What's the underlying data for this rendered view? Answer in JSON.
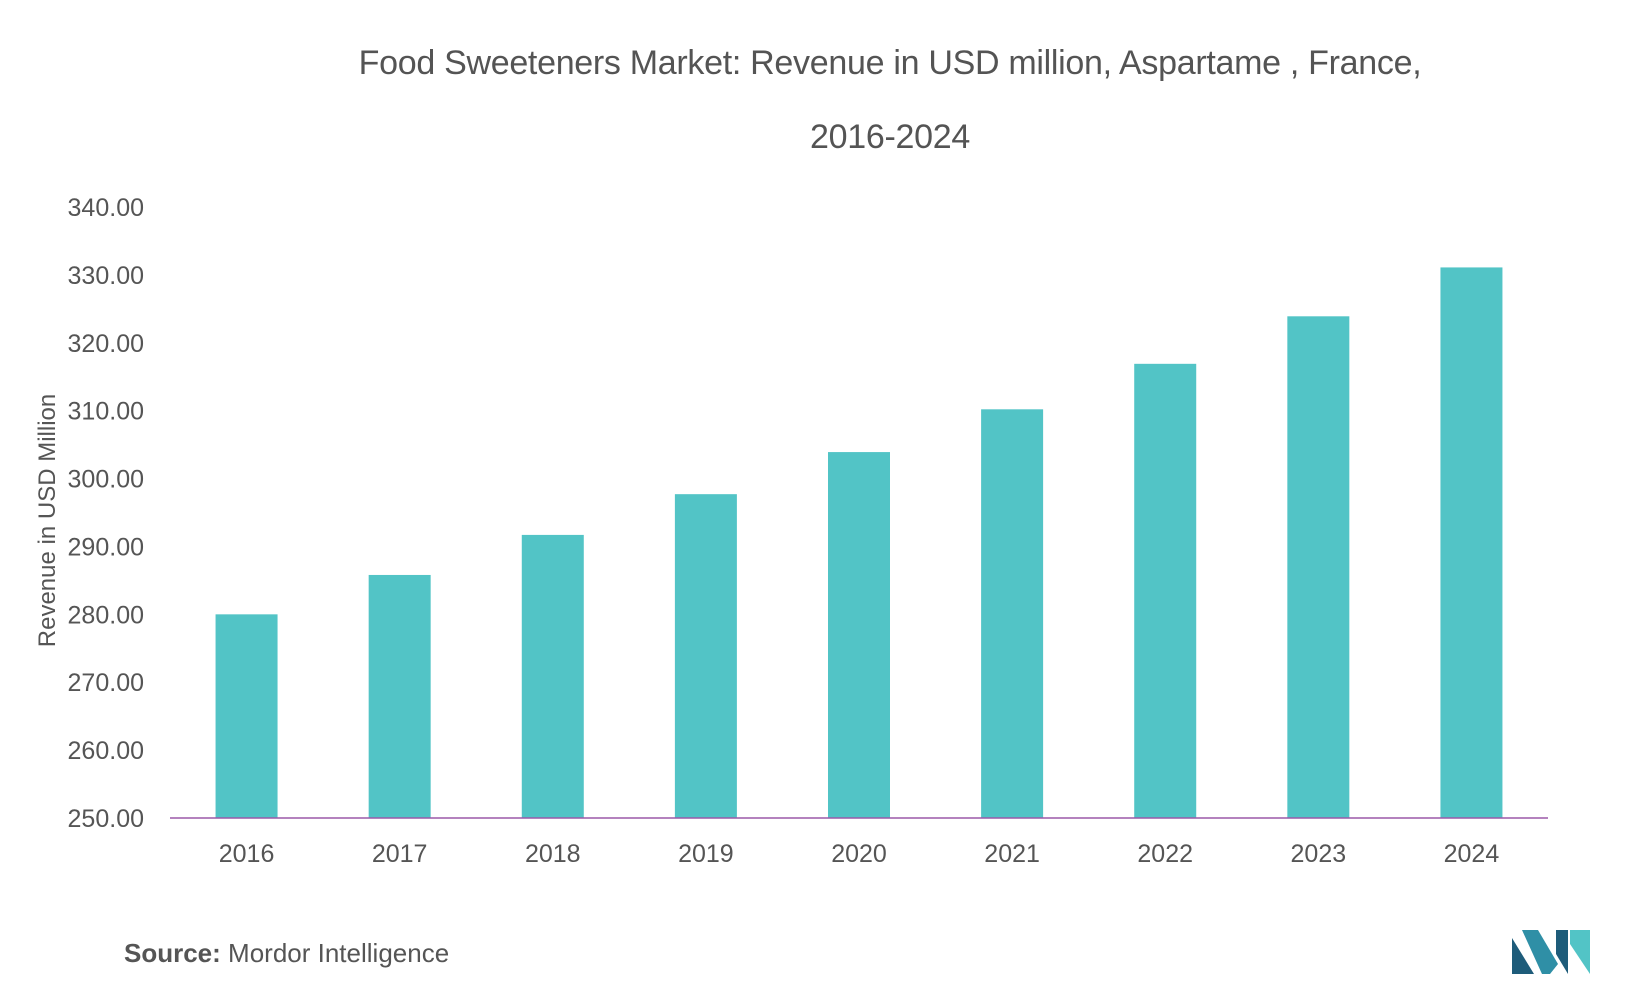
{
  "title_line1": "Food Sweeteners Market: Revenue in USD million, Aspartame , France,",
  "title_line2": "2016-2024",
  "source_label": "Source:",
  "source_text": "Mordor Intelligence",
  "logo_icon": "mordor-intelligence-logo-icon",
  "colors": {
    "bar": "#52C4C6",
    "baseline": "#9B59A8",
    "text": "#555555",
    "logo_dark": "#1E5C7A",
    "logo_light": "#52C4C6"
  },
  "chart_data": {
    "type": "bar",
    "title": "Food Sweeteners Market: Revenue in USD million, Aspartame , France, 2016-2024",
    "xlabel": "",
    "ylabel": "Revenue in USD Million",
    "categories": [
      "2016",
      "2017",
      "2018",
      "2019",
      "2020",
      "2021",
      "2022",
      "2023",
      "2024"
    ],
    "values": [
      280.0,
      285.8,
      291.7,
      297.7,
      303.9,
      310.2,
      316.9,
      323.9,
      331.1
    ],
    "ylim": [
      250,
      340
    ],
    "yticks": [
      "250.00",
      "260.00",
      "270.00",
      "280.00",
      "290.00",
      "300.00",
      "310.00",
      "320.00",
      "330.00",
      "340.00"
    ],
    "grid": false,
    "legend": "none"
  }
}
